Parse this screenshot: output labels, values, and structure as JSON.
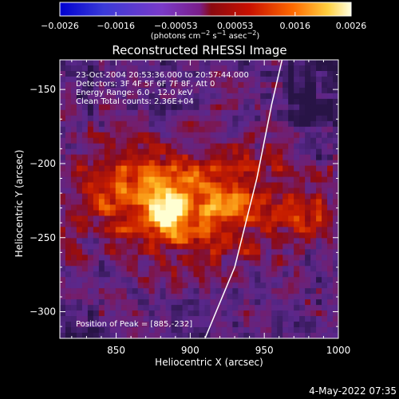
{
  "chart_data": {
    "type": "heatmap",
    "title": "Reconstructed RHESSI Image",
    "xlabel": "Heliocentric X (arcsec)",
    "ylabel": "Heliocentric Y (arcsec)",
    "xlim": [
      812,
      1000
    ],
    "ylim": [
      -318,
      -130
    ],
    "x_ticks": [
      850,
      900,
      950,
      1000
    ],
    "y_ticks": [
      -150,
      -200,
      -250,
      -300
    ],
    "colorbar": {
      "label_html": "(photons cm<tspan baseline-shift='super' font-size='8'>−2</tspan> s<tspan baseline-shift='super' font-size='8'>−1</tspan> asec<tspan baseline-shift='super' font-size='8'>−2</tspan>)",
      "label_text": "(photons cm−2 s−1 asec−2)",
      "range": [
        -0.0026,
        0.0026
      ],
      "tick_labels": [
        "−0.0026",
        "−0.0016",
        "−0.00053",
        "0.00053",
        "0.0016",
        "0.0026"
      ],
      "tick_values": [
        -0.0026,
        -0.0016,
        -0.00053,
        0.00053,
        0.0016,
        0.0026
      ]
    },
    "info_lines": [
      "23-Oct-2004 20:53:36.000 to 20:57:44.000",
      "Detectors: 3F 4F 5F 6F 7F 8F, Att 0",
      "Energy Range: 6.0 - 12.0 keV",
      "Clean     Total counts: 2.36E+04"
    ],
    "peak_label": "Position of Peak = [885,-232]",
    "peak": {
      "x": 885,
      "y": -232
    },
    "limb_curve": [
      [
        910,
        -318
      ],
      [
        930,
        -270
      ],
      [
        945,
        -210
      ],
      [
        955,
        -160
      ],
      [
        962,
        -130
      ]
    ],
    "colors": {
      "background": "#000000",
      "text": "#ffffff"
    }
  },
  "footer": {
    "date": "4-May-2022 07:35"
  }
}
